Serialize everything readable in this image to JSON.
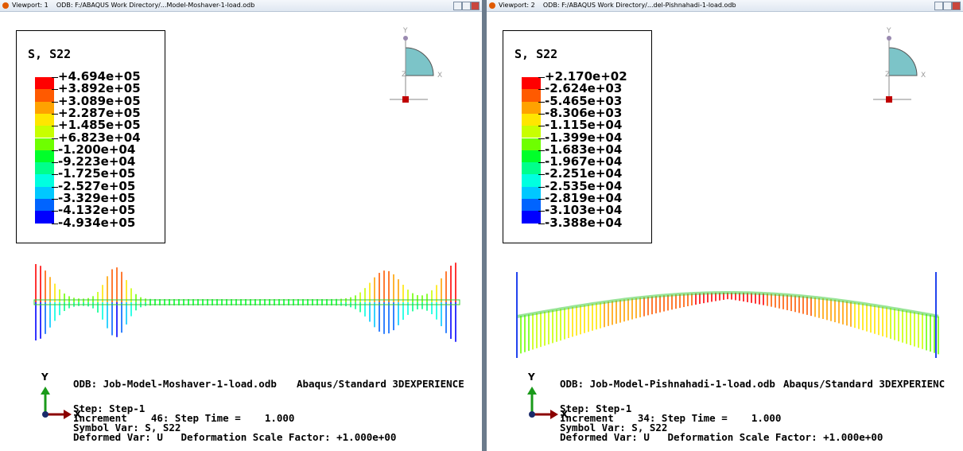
{
  "viewports": [
    {
      "title": "Viewport: 1    ODB: F:/ABAQUS Work Directory/...Model-Moshaver-1-load.odb",
      "legend": {
        "title": "S, S22",
        "labels": [
          "+4.694e+05",
          "+3.892e+05",
          "+3.089e+05",
          "+2.287e+05",
          "+1.485e+05",
          "+6.823e+04",
          "-1.200e+04",
          "-9.223e+04",
          "-1.725e+05",
          "-2.527e+05",
          "-3.329e+05",
          "-4.132e+05",
          "-4.934e+05"
        ]
      },
      "triad_top": {
        "y": "Y",
        "x": "X",
        "z": "Z"
      },
      "triad_bottom": {
        "y": "Y",
        "x": "X"
      },
      "info": {
        "odb": "ODB: Job-Model-Moshaver-1-load.odb",
        "solver": "Abaqus/Standard 3DEXPERIENCE",
        "step": "Step: Step-1",
        "increment": "Increment    46: Step Time =    1.000",
        "symbol": "Symbol Var: S, S22",
        "deformed": "Deformed Var: U   Deformation Scale Factor: +1.000e+00"
      }
    },
    {
      "title": "Viewport: 2    ODB: F:/ABAQUS Work Directory/...del-Pishnahadi-1-load.odb",
      "legend": {
        "title": "S, S22",
        "labels": [
          "+2.170e+02",
          "-2.624e+03",
          "-5.465e+03",
          "-8.306e+03",
          "-1.115e+04",
          "-1.399e+04",
          "-1.683e+04",
          "-1.967e+04",
          "-2.251e+04",
          "-2.535e+04",
          "-2.819e+04",
          "-3.103e+04",
          "-3.388e+04"
        ]
      },
      "triad_top": {
        "y": "Y",
        "x": "X",
        "z": "Z"
      },
      "triad_bottom": {
        "y": "Y",
        "x": "X"
      },
      "info": {
        "odb": "ODB: Job-Model-Pishnahadi-1-load.odb",
        "solver": "Abaqus/Standard 3DEXPERIENC",
        "step": "Step: Step-1",
        "increment": "Increment    34: Step Time =    1.000",
        "symbol": "Symbol Var: S, S22",
        "deformed": "Deformed Var: U   Deformation Scale Factor: +1.000e+00"
      }
    }
  ]
}
